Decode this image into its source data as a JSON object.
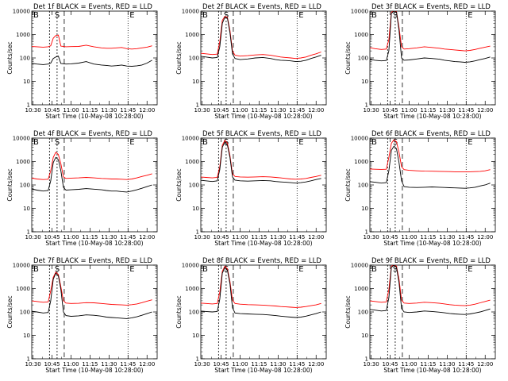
{
  "chart_data": [
    {
      "type": "line",
      "title": "Det 1f BLACK = Events, RED = LLD",
      "xlabel": "Start Time (10-May-08 10:28:00)",
      "ylabel": "Counts/sec",
      "xticks": [
        "10:30",
        "10:45",
        "11:00",
        "11:15",
        "11:30",
        "11:45",
        "12:00"
      ],
      "yticks": [
        "1",
        "10",
        "100",
        "1000",
        "10000"
      ],
      "ylim": [
        1,
        10000
      ],
      "yscale": "log",
      "markers": {
        "B": "10:43",
        "S": "10:49",
        "E": "11:45"
      },
      "x": [
        0,
        5,
        10,
        14,
        16,
        18,
        20,
        22,
        24,
        28,
        32,
        38,
        44,
        50,
        56,
        60,
        64,
        68,
        72,
        76,
        80,
        84,
        88,
        92,
        96
      ],
      "series": [
        {
          "values": [
            310,
            300,
            290,
            300,
            330,
            700,
            900,
            950,
            320,
            300,
            305,
            310,
            350,
            300,
            270,
            260,
            260,
            270,
            280,
            250,
            240,
            250,
            270,
            290,
            330
          ],
          "color": "#ff0000"
        },
        {
          "values": [
            60,
            55,
            52,
            55,
            60,
            95,
            110,
            120,
            58,
            55,
            56,
            60,
            70,
            55,
            50,
            48,
            45,
            47,
            50,
            45,
            44,
            46,
            50,
            60,
            80
          ],
          "color": "#000000"
        }
      ]
    },
    {
      "type": "line",
      "title": "Det 2f BLACK = Events, RED = LLD",
      "xlabel": "Start Time (10-May-08 10:28:00)",
      "ylabel": "Counts/sec",
      "xticks": [
        "10:30",
        "10:45",
        "11:00",
        "11:15",
        "11:30",
        "11:45",
        "12:00"
      ],
      "yticks": [
        "1",
        "10",
        "100",
        "1000",
        "10000"
      ],
      "ylim": [
        1,
        10000
      ],
      "yscale": "log",
      "markers": {
        "B": "10:43",
        "S": "10:49",
        "E": "11:45"
      },
      "x": [
        0,
        5,
        10,
        14,
        16,
        18,
        20,
        22,
        24,
        26,
        28,
        32,
        38,
        44,
        50,
        56,
        60,
        64,
        68,
        72,
        76,
        80,
        84,
        88,
        92,
        96
      ],
      "series": [
        {
          "values": [
            160,
            150,
            140,
            145,
            500,
            4000,
            6000,
            5500,
            1500,
            200,
            130,
            120,
            125,
            135,
            140,
            130,
            120,
            110,
            105,
            100,
            95,
            100,
            110,
            130,
            150,
            180
          ],
          "color": "#ff0000"
        },
        {
          "values": [
            120,
            110,
            100,
            105,
            300,
            3000,
            5500,
            5000,
            1200,
            150,
            95,
            85,
            90,
            100,
            105,
            95,
            85,
            80,
            78,
            75,
            70,
            72,
            80,
            95,
            110,
            130
          ],
          "color": "#000000"
        }
      ]
    },
    {
      "type": "line",
      "title": "Det 3f BLACK = Events, RED = LLD",
      "xlabel": "Start Time (10-May-08 10:28:00)",
      "ylabel": "Counts/sec",
      "xticks": [
        "10:30",
        "10:45",
        "11:00",
        "11:15",
        "11:30",
        "11:45",
        "12:00"
      ],
      "yticks": [
        "1",
        "10",
        "100",
        "1000",
        "10000"
      ],
      "ylim": [
        1,
        10000
      ],
      "yscale": "log",
      "markers": {
        "B": "10:43",
        "S": "10:49",
        "E": "11:45"
      },
      "x": [
        0,
        5,
        10,
        14,
        16,
        18,
        20,
        22,
        24,
        26,
        28,
        32,
        38,
        44,
        50,
        56,
        60,
        64,
        68,
        72,
        76,
        80,
        84,
        88,
        92,
        96
      ],
      "series": [
        {
          "values": [
            280,
            250,
            230,
            240,
            600,
            9000,
            10000,
            9500,
            2000,
            300,
            240,
            250,
            270,
            300,
            280,
            260,
            240,
            230,
            220,
            210,
            200,
            210,
            230,
            260,
            290,
            320
          ],
          "color": "#ff0000"
        },
        {
          "values": [
            90,
            80,
            75,
            78,
            200,
            8000,
            10000,
            9000,
            1500,
            100,
            80,
            82,
            90,
            100,
            95,
            88,
            80,
            75,
            70,
            68,
            65,
            68,
            75,
            85,
            95,
            110
          ],
          "color": "#000000"
        }
      ]
    },
    {
      "type": "line",
      "title": "Det 4f BLACK = Events, RED = LLD",
      "xlabel": "Start Time (10-May-08 10:28:00)",
      "ylabel": "Counts/sec",
      "xticks": [
        "10:30",
        "10:45",
        "11:00",
        "11:15",
        "11:30",
        "11:45",
        "12:00"
      ],
      "yticks": [
        "1",
        "10",
        "100",
        "1000",
        "10000"
      ],
      "ylim": [
        1,
        10000
      ],
      "yscale": "log",
      "markers": {
        "B": "10:43",
        "S": "10:49",
        "E": "11:45"
      },
      "x": [
        0,
        5,
        10,
        14,
        16,
        18,
        20,
        22,
        24,
        26,
        28,
        32,
        38,
        44,
        50,
        56,
        60,
        64,
        68,
        72,
        76,
        80,
        84,
        88,
        92,
        96
      ],
      "series": [
        {
          "values": [
            200,
            180,
            170,
            175,
            400,
            1500,
            2500,
            2000,
            800,
            220,
            190,
            195,
            200,
            210,
            200,
            190,
            185,
            180,
            180,
            175,
            170,
            180,
            200,
            230,
            260,
            300
          ],
          "color": "#ff0000"
        },
        {
          "values": [
            70,
            60,
            55,
            58,
            150,
            900,
            1500,
            1200,
            400,
            80,
            60,
            62,
            65,
            70,
            66,
            62,
            58,
            55,
            55,
            52,
            50,
            55,
            62,
            72,
            85,
            100
          ],
          "color": "#000000"
        }
      ]
    },
    {
      "type": "line",
      "title": "Det 5f BLACK = Events, RED = LLD",
      "xlabel": "Start Time (10-May-08 10:28:00)",
      "ylabel": "Counts/sec",
      "xticks": [
        "10:30",
        "10:45",
        "11:00",
        "11:15",
        "11:30",
        "11:45",
        "12:00"
      ],
      "yticks": [
        "1",
        "10",
        "100",
        "1000",
        "10000"
      ],
      "ylim": [
        1,
        10000
      ],
      "yscale": "log",
      "markers": {
        "B": "10:43",
        "S": "10:49",
        "E": "11:45"
      },
      "x": [
        0,
        5,
        10,
        14,
        16,
        18,
        20,
        22,
        24,
        26,
        28,
        32,
        38,
        44,
        50,
        56,
        60,
        64,
        68,
        72,
        76,
        80,
        84,
        88,
        92,
        96
      ],
      "series": [
        {
          "values": [
            220,
            210,
            200,
            210,
            600,
            5000,
            8000,
            6000,
            1800,
            300,
            230,
            220,
            215,
            220,
            225,
            220,
            210,
            200,
            190,
            180,
            175,
            180,
            190,
            210,
            230,
            260
          ],
          "color": "#ff0000"
        },
        {
          "values": [
            160,
            150,
            140,
            150,
            450,
            4000,
            7000,
            5000,
            1500,
            220,
            160,
            150,
            145,
            150,
            155,
            150,
            140,
            135,
            130,
            125,
            120,
            125,
            135,
            150,
            170,
            190
          ],
          "color": "#000000"
        }
      ]
    },
    {
      "type": "line",
      "title": "Det 6f BLACK = Events, RED = LLD",
      "xlabel": "Start Time (10-May-08 10:28:00)",
      "ylabel": "Counts/sec",
      "xticks": [
        "10:30",
        "10:45",
        "11:00",
        "11:15",
        "11:30",
        "11:45",
        "12:00"
      ],
      "yticks": [
        "1",
        "10",
        "100",
        "1000",
        "10000"
      ],
      "ylim": [
        1,
        10000
      ],
      "yscale": "log",
      "markers": {
        "B": "10:43",
        "S": "10:49",
        "E": "11:45"
      },
      "x": [
        0,
        5,
        10,
        14,
        16,
        18,
        20,
        22,
        24,
        26,
        28,
        32,
        38,
        44,
        50,
        56,
        60,
        64,
        68,
        72,
        76,
        80,
        84,
        88,
        92,
        96
      ],
      "series": [
        {
          "values": [
            480,
            470,
            460,
            470,
            1500,
            6000,
            8500,
            7000,
            2500,
            600,
            450,
            420,
            400,
            390,
            385,
            380,
            375,
            370,
            365,
            360,
            360,
            365,
            370,
            380,
            400,
            450
          ],
          "color": "#ff0000"
        },
        {
          "values": [
            140,
            130,
            120,
            125,
            400,
            3000,
            4500,
            3500,
            900,
            150,
            85,
            80,
            78,
            80,
            82,
            80,
            78,
            76,
            75,
            74,
            72,
            75,
            80,
            90,
            100,
            120
          ],
          "color": "#000000"
        }
      ]
    },
    {
      "type": "line",
      "title": "Det 7f BLACK = Events, RED = LLD",
      "xlabel": "Start Time (10-May-08 10:28:00)",
      "ylabel": "Counts/sec",
      "xticks": [
        "10:30",
        "10:45",
        "11:00",
        "11:15",
        "11:30",
        "11:45",
        "12:00"
      ],
      "yticks": [
        "1",
        "10",
        "100",
        "1000",
        "10000"
      ],
      "ylim": [
        1,
        10000
      ],
      "yscale": "log",
      "markers": {
        "B": "10:43",
        "S": "10:49",
        "E": "11:45"
      },
      "x": [
        0,
        5,
        10,
        14,
        16,
        18,
        20,
        22,
        24,
        26,
        28,
        32,
        38,
        44,
        50,
        56,
        60,
        64,
        68,
        72,
        76,
        80,
        84,
        88,
        92,
        96
      ],
      "series": [
        {
          "values": [
            300,
            280,
            260,
            270,
            800,
            3000,
            5000,
            4000,
            1200,
            300,
            240,
            230,
            235,
            250,
            245,
            230,
            220,
            210,
            205,
            200,
            195,
            205,
            220,
            250,
            290,
            330
          ],
          "color": "#ff0000"
        },
        {
          "values": [
            110,
            100,
            90,
            95,
            300,
            2500,
            4500,
            3500,
            900,
            100,
            70,
            65,
            68,
            75,
            72,
            66,
            60,
            58,
            56,
            54,
            52,
            56,
            62,
            72,
            85,
            100
          ],
          "color": "#000000"
        }
      ]
    },
    {
      "type": "line",
      "title": "Det 8f BLACK = Events, RED = LLD",
      "xlabel": "Start Time (10-May-08 10:28:00)",
      "ylabel": "Counts/sec",
      "xticks": [
        "10:30",
        "10:45",
        "11:00",
        "11:15",
        "11:30",
        "11:45",
        "12:00"
      ],
      "yticks": [
        "1",
        "10",
        "100",
        "1000",
        "10000"
      ],
      "ylim": [
        1,
        10000
      ],
      "yscale": "log",
      "markers": {
        "B": "10:43",
        "S": "10:49",
        "E": "11:45"
      },
      "x": [
        0,
        5,
        10,
        14,
        16,
        18,
        20,
        22,
        24,
        26,
        28,
        32,
        38,
        44,
        50,
        56,
        60,
        64,
        68,
        72,
        76,
        80,
        84,
        88,
        92,
        96
      ],
      "series": [
        {
          "values": [
            240,
            230,
            220,
            230,
            700,
            5500,
            9000,
            7000,
            2000,
            320,
            230,
            215,
            205,
            200,
            195,
            185,
            180,
            170,
            165,
            160,
            155,
            160,
            170,
            185,
            200,
            230
          ],
          "color": "#ff0000"
        },
        {
          "values": [
            110,
            105,
            100,
            105,
            350,
            4500,
            8000,
            6000,
            1600,
            150,
            90,
            85,
            82,
            80,
            78,
            74,
            70,
            66,
            63,
            60,
            58,
            60,
            66,
            75,
            85,
            100
          ],
          "color": "#000000"
        }
      ]
    },
    {
      "type": "line",
      "title": "Det 9f BLACK = Events, RED = LLD",
      "xlabel": "Start Time (10-May-08 10:28:00)",
      "ylabel": "Counts/sec",
      "xticks": [
        "10:30",
        "10:45",
        "11:00",
        "11:15",
        "11:30",
        "11:45",
        "12:00"
      ],
      "yticks": [
        "1",
        "10",
        "100",
        "1000",
        "10000"
      ],
      "ylim": [
        1,
        10000
      ],
      "yscale": "log",
      "markers": {
        "B": "10:43",
        "S": "10:49",
        "E": "11:45"
      },
      "x": [
        0,
        5,
        10,
        14,
        16,
        18,
        20,
        22,
        24,
        26,
        28,
        32,
        38,
        44,
        50,
        56,
        60,
        64,
        68,
        72,
        76,
        80,
        84,
        88,
        92,
        96
      ],
      "series": [
        {
          "values": [
            300,
            280,
            260,
            270,
            900,
            9000,
            10000,
            9000,
            2500,
            320,
            240,
            230,
            240,
            260,
            250,
            235,
            220,
            205,
            195,
            190,
            185,
            195,
            215,
            245,
            280,
            320
          ],
          "color": "#ff0000"
        },
        {
          "values": [
            130,
            120,
            110,
            115,
            400,
            8000,
            10000,
            8000,
            1800,
            140,
            100,
            95,
            100,
            110,
            105,
            98,
            92,
            86,
            82,
            80,
            78,
            82,
            90,
            100,
            115,
            135
          ],
          "color": "#000000"
        }
      ]
    }
  ]
}
